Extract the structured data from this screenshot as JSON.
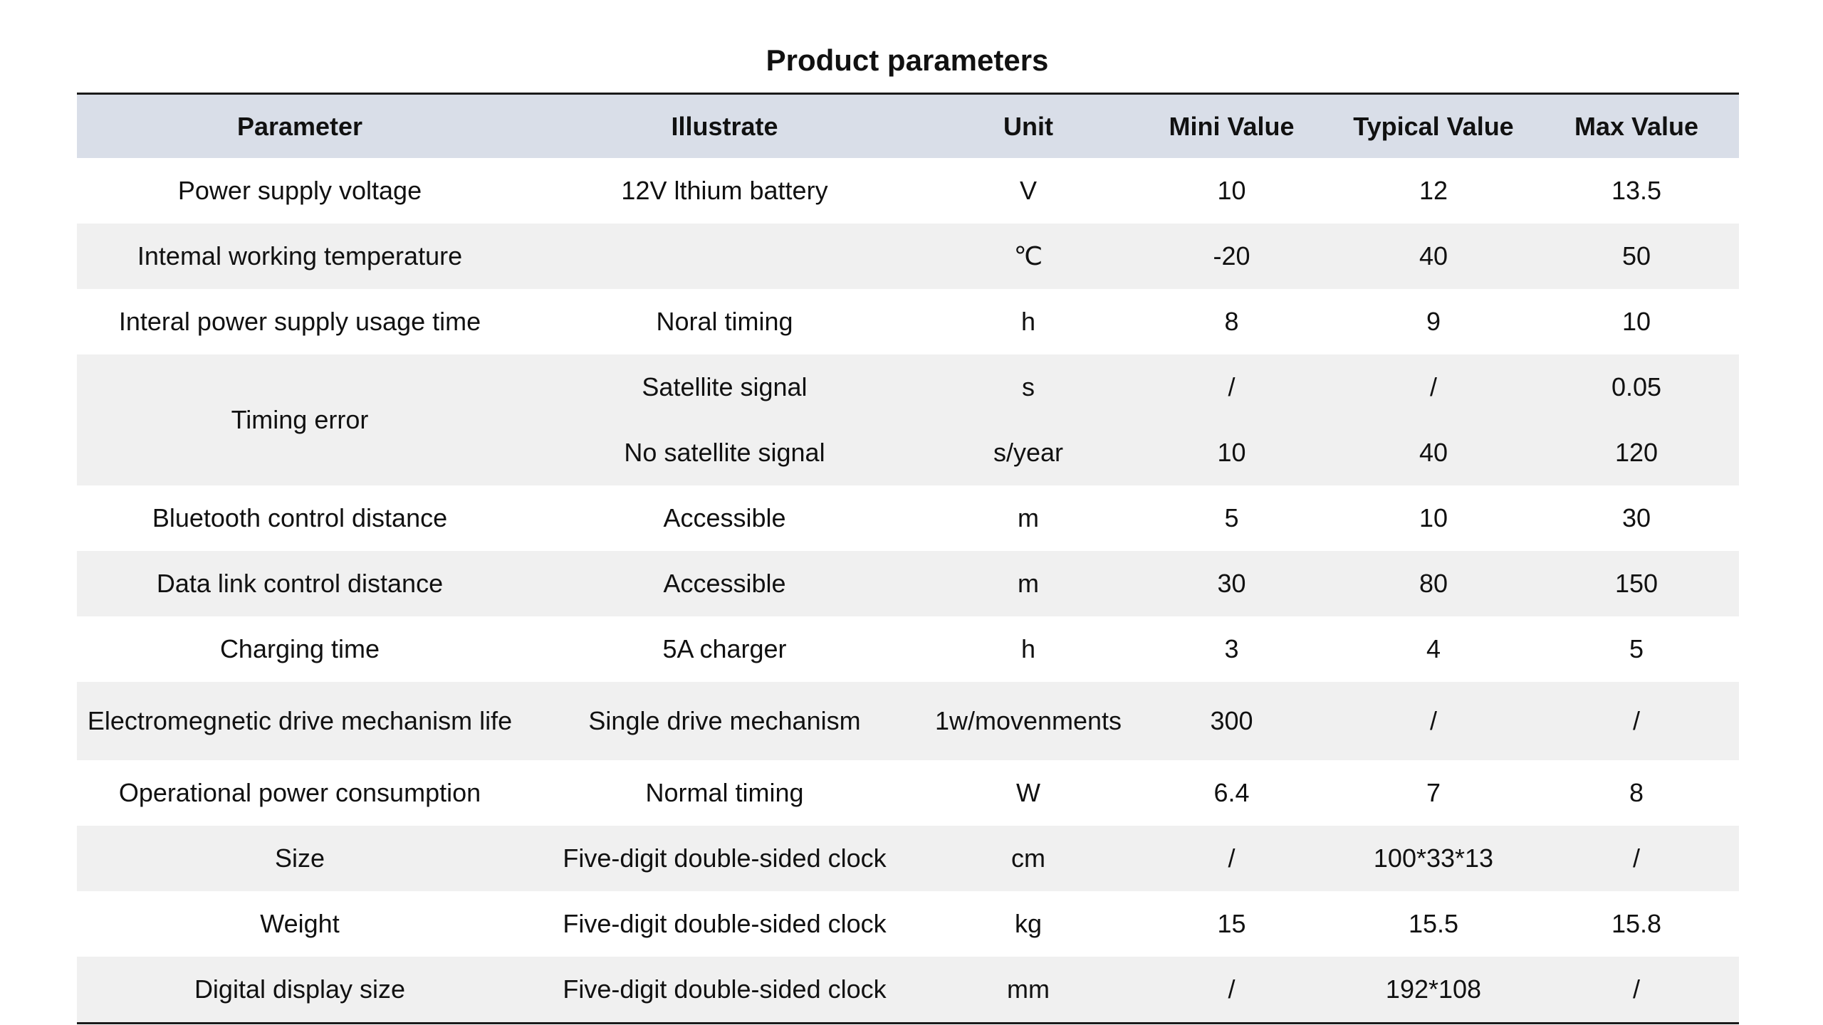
{
  "title": "Product parameters",
  "header": {
    "parameter": "Parameter",
    "illustrate": "Illustrate",
    "unit": "Unit",
    "min": "Mini Value",
    "typical": "Typical Value",
    "max": "Max Value"
  },
  "rows": [
    {
      "parameter": "Power supply voltage",
      "illustrate": "12V lthium battery",
      "unit": "V",
      "min": "10",
      "typical": "12",
      "max": "13.5"
    },
    {
      "parameter": "Intemal working temperature",
      "illustrate": "",
      "unit": "℃",
      "min": "-20",
      "typical": "40",
      "max": "50"
    },
    {
      "parameter": "Interal power supply usage time",
      "illustrate": "Noral timing",
      "unit": "h",
      "min": "8",
      "typical": "9",
      "max": "10"
    },
    {
      "parameter": "Timing error",
      "illustrate": "Satellite signal",
      "unit": "s",
      "min": "/",
      "typical": "/",
      "max": "0.05"
    },
    {
      "parameter": "",
      "illustrate": "No satellite signal",
      "unit": "s/year",
      "min": "10",
      "typical": "40",
      "max": "120"
    },
    {
      "parameter": "Bluetooth control distance",
      "illustrate": "Accessible",
      "unit": "m",
      "min": "5",
      "typical": "10",
      "max": "30"
    },
    {
      "parameter": "Data link control distance",
      "illustrate": "Accessible",
      "unit": "m",
      "min": "30",
      "typical": "80",
      "max": "150"
    },
    {
      "parameter": "Charging time",
      "illustrate": "5A charger",
      "unit": "h",
      "min": "3",
      "typical": "4",
      "max": "5"
    },
    {
      "parameter": "Electromegnetic drive mechanism life",
      "illustrate": "Single drive mechanism",
      "unit": "1w/movenments",
      "min": "300",
      "typical": "/",
      "max": "/"
    },
    {
      "parameter": "Operational power consumption",
      "illustrate": "Normal timing",
      "unit": "W",
      "min": "6.4",
      "typical": "7",
      "max": "8"
    },
    {
      "parameter": "Size",
      "illustrate": "Five-digit double-sided clock",
      "unit": "cm",
      "min": "/",
      "typical": "100*33*13",
      "max": "/"
    },
    {
      "parameter": "Weight",
      "illustrate": "Five-digit double-sided clock",
      "unit": "kg",
      "min": "15",
      "typical": "15.5",
      "max": "15.8"
    },
    {
      "parameter": "Digital display size",
      "illustrate": "Five-digit double-sided clock",
      "unit": "mm",
      "min": "/",
      "typical": "192*108",
      "max": "/"
    }
  ],
  "colors": {
    "header_bg": "#d9dee8",
    "shaded_row_bg": "#f0f0f0",
    "rule": "#1a1a1a"
  }
}
